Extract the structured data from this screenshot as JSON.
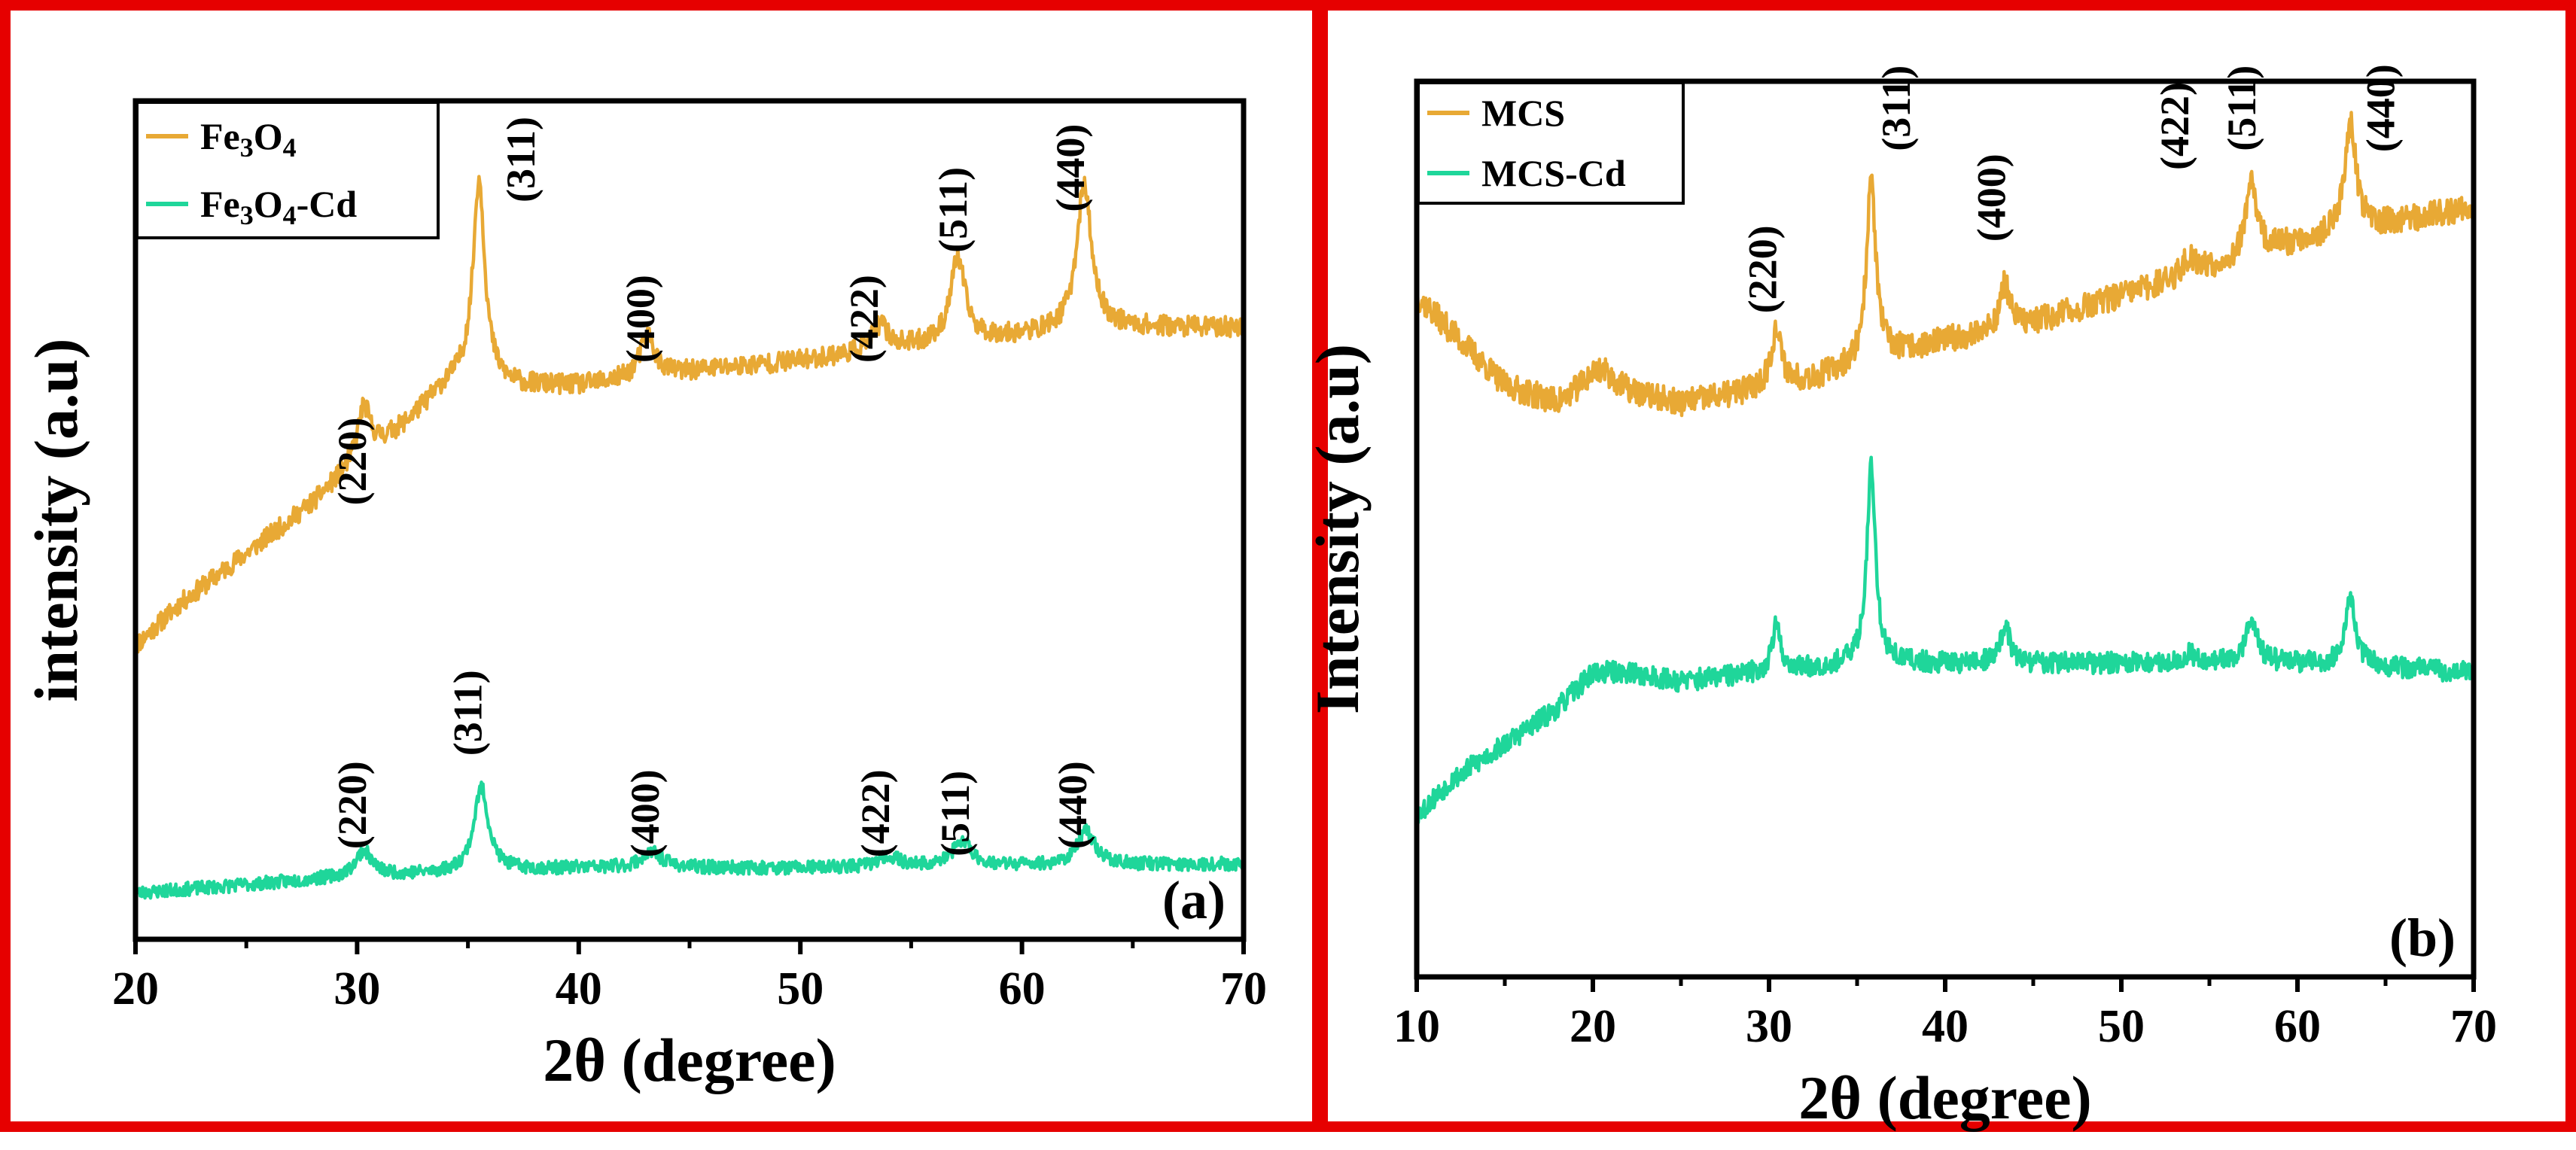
{
  "colors": {
    "frame": "#e60000",
    "series_top": "#e8a935",
    "series_bottom": "#1fd69a",
    "axes": "#000000"
  },
  "chart_data": [
    {
      "type": "line",
      "panel_label": "(a)",
      "xlabel": "2θ (degree)",
      "ylabel": "intensity (a.u)",
      "xlim": [
        20,
        70
      ],
      "ylim": [
        0,
        1
      ],
      "xticks": [
        "20",
        "30",
        "40",
        "50",
        "60",
        "70"
      ],
      "yticks_shown": false,
      "grid": false,
      "legend_position": "top-left",
      "legend": [
        {
          "label_main": "Fe",
          "sub1": "3",
          "mid": "O",
          "sub2": "4",
          "suffix": ""
        },
        {
          "label_main": "Fe",
          "sub1": "3",
          "mid": "O",
          "sub2": "4",
          "suffix": "-Cd"
        }
      ],
      "series": [
        {
          "color_key": "series_top",
          "baseline": [
            [
              20,
              0.35
            ],
            [
              22,
              0.4
            ],
            [
              25,
              0.46
            ],
            [
              28,
              0.52
            ],
            [
              30,
              0.57
            ],
            [
              32,
              0.61
            ],
            [
              34,
              0.66
            ],
            [
              35,
              0.67
            ],
            [
              37,
              0.66
            ],
            [
              40,
              0.66
            ],
            [
              43,
              0.67
            ],
            [
              46,
              0.68
            ],
            [
              50,
              0.69
            ],
            [
              53,
              0.7
            ],
            [
              56,
              0.71
            ],
            [
              60,
              0.72
            ],
            [
              63,
              0.73
            ],
            [
              66,
              0.73
            ],
            [
              70,
              0.73
            ]
          ],
          "peaks": [
            [
              30.3,
              0.06,
              0.35
            ],
            [
              35.5,
              0.24,
              0.32
            ],
            [
              43.1,
              0.05,
              0.4
            ],
            [
              53.6,
              0.03,
              0.45
            ],
            [
              57.1,
              0.1,
              0.4
            ],
            [
              62.8,
              0.17,
              0.4
            ]
          ],
          "noise": 0.012,
          "seed": 11
        },
        {
          "color_key": "series_bottom",
          "baseline": [
            [
              20,
              0.055
            ],
            [
              25,
              0.065
            ],
            [
              30,
              0.075
            ],
            [
              35,
              0.08
            ],
            [
              40,
              0.085
            ],
            [
              50,
              0.085
            ],
            [
              60,
              0.088
            ],
            [
              70,
              0.09
            ]
          ],
          "peaks": [
            [
              30.3,
              0.03,
              0.45
            ],
            [
              35.6,
              0.1,
              0.4
            ],
            [
              43.3,
              0.018,
              0.6
            ],
            [
              54.0,
              0.012,
              0.6
            ],
            [
              57.3,
              0.03,
              0.5
            ],
            [
              62.9,
              0.04,
              0.5
            ]
          ],
          "noise": 0.008,
          "seed": 23
        }
      ],
      "annotations": [
        {
          "text": "(220)",
          "x": 30.4,
          "y": 0.57
        },
        {
          "text": "(311)",
          "x": 38.0,
          "y": 0.93
        },
        {
          "text": "(400)",
          "x": 43.4,
          "y": 0.74
        },
        {
          "text": "(422)",
          "x": 53.5,
          "y": 0.74
        },
        {
          "text": "(511)",
          "x": 57.5,
          "y": 0.87
        },
        {
          "text": "(440)",
          "x": 62.8,
          "y": 0.92
        },
        {
          "text": "(220)",
          "x": 30.4,
          "y": 0.16
        },
        {
          "text": "(311)",
          "x": 35.6,
          "y": 0.27
        },
        {
          "text": "(400)",
          "x": 43.6,
          "y": 0.15
        },
        {
          "text": "(422)",
          "x": 54.0,
          "y": 0.15
        },
        {
          "text": "(511)",
          "x": 57.6,
          "y": 0.15
        },
        {
          "text": "(440)",
          "x": 62.9,
          "y": 0.16
        }
      ]
    },
    {
      "type": "line",
      "panel_label": "(b)",
      "xlabel": "2θ (degree)",
      "ylabel": "Intensity (a.u)",
      "xlim": [
        10,
        70
      ],
      "ylim": [
        0,
        1
      ],
      "xticks": [
        "10",
        "20",
        "30",
        "40",
        "50",
        "60",
        "70"
      ],
      "yticks_shown": false,
      "grid": false,
      "legend_position": "top-left",
      "legend": [
        {
          "label_main": "MCS",
          "sub1": "",
          "mid": "",
          "sub2": "",
          "suffix": ""
        },
        {
          "label_main": "MCS-Cd",
          "sub1": "",
          "mid": "",
          "sub2": "",
          "suffix": ""
        }
      ],
      "series": [
        {
          "color_key": "series_top",
          "baseline": [
            [
              10,
              0.76
            ],
            [
              12,
              0.72
            ],
            [
              15,
              0.66
            ],
            [
              18,
              0.64
            ],
            [
              20,
              0.66
            ],
            [
              22,
              0.65
            ],
            [
              25,
              0.64
            ],
            [
              28,
              0.65
            ],
            [
              30,
              0.66
            ],
            [
              33,
              0.67
            ],
            [
              36,
              0.69
            ],
            [
              40,
              0.71
            ],
            [
              45,
              0.73
            ],
            [
              50,
              0.76
            ],
            [
              55,
              0.79
            ],
            [
              60,
              0.82
            ],
            [
              65,
              0.84
            ],
            [
              70,
              0.86
            ]
          ],
          "peaks": [
            [
              20.5,
              0.02,
              1.0
            ],
            [
              30.4,
              0.06,
              0.35
            ],
            [
              35.8,
              0.2,
              0.32
            ],
            [
              43.4,
              0.05,
              0.35
            ],
            [
              53.9,
              0.02,
              0.5
            ],
            [
              57.4,
              0.08,
              0.4
            ],
            [
              63.0,
              0.12,
              0.4
            ]
          ],
          "noise": 0.015,
          "seed": 37
        },
        {
          "color_key": "series_bottom",
          "baseline": [
            [
              10,
              0.18
            ],
            [
              12,
              0.22
            ],
            [
              15,
              0.26
            ],
            [
              18,
              0.3
            ],
            [
              20,
              0.34
            ],
            [
              22,
              0.34
            ],
            [
              25,
              0.33
            ],
            [
              30,
              0.34
            ],
            [
              35,
              0.35
            ],
            [
              40,
              0.35
            ],
            [
              50,
              0.35
            ],
            [
              60,
              0.35
            ],
            [
              70,
              0.34
            ]
          ],
          "peaks": [
            [
              30.4,
              0.05,
              0.3
            ],
            [
              35.8,
              0.22,
              0.3
            ],
            [
              43.4,
              0.04,
              0.35
            ],
            [
              53.9,
              0.01,
              0.5
            ],
            [
              57.4,
              0.05,
              0.4
            ],
            [
              63.0,
              0.07,
              0.4
            ]
          ],
          "noise": 0.012,
          "seed": 53
        }
      ],
      "annotations": [
        {
          "text": "(220)",
          "x": 30.4,
          "y": 0.79
        },
        {
          "text": "(311)",
          "x": 38.0,
          "y": 0.97
        },
        {
          "text": "(400)",
          "x": 43.4,
          "y": 0.87
        },
        {
          "text": "(422)",
          "x": 53.8,
          "y": 0.95
        },
        {
          "text": "(511)",
          "x": 57.6,
          "y": 0.97
        },
        {
          "text": "(440)",
          "x": 65.5,
          "y": 0.97
        }
      ]
    }
  ]
}
